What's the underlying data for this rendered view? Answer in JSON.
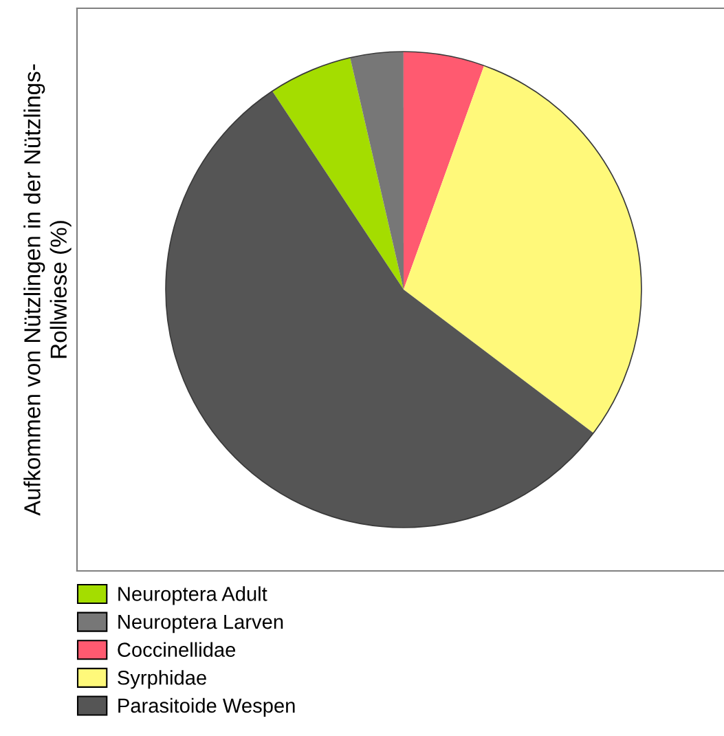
{
  "chart_data": {
    "type": "pie",
    "ylabel": "Aufkommen von Nützlingen in der Nützlings-\nRollwiese (%)",
    "categories": [
      "Neuroptera Adult",
      "Neuroptera Larven",
      "Coccinellidae",
      "Syrphidae",
      "Parasitoide Wespen"
    ],
    "values": [
      5.7,
      3.6,
      5.5,
      29.8,
      55.4
    ],
    "colors": [
      "#a4dd00",
      "#777777",
      "#ff5a70",
      "#fff97a",
      "#555555"
    ],
    "legend": "bottom left"
  }
}
